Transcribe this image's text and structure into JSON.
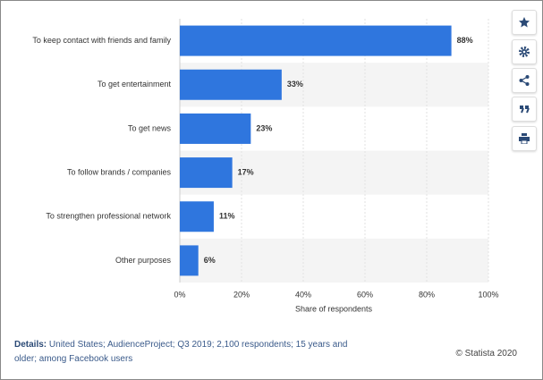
{
  "chart_data": {
    "type": "barh",
    "categories": [
      "To keep contact with friends and family",
      "To get entertainment",
      "To get news",
      "To follow brands / companies",
      "To strengthen professional network",
      "Other purposes"
    ],
    "values": [
      88,
      33,
      23,
      17,
      11,
      6
    ],
    "value_labels": [
      "88%",
      "33%",
      "23%",
      "17%",
      "11%",
      "6%"
    ],
    "color": "#2f76de",
    "xlim": [
      0,
      100
    ],
    "xticks": [
      {
        "value": 0,
        "label": "0%"
      },
      {
        "value": 20,
        "label": "20%"
      },
      {
        "value": 40,
        "label": "40%"
      },
      {
        "value": 60,
        "label": "60%"
      },
      {
        "value": 80,
        "label": "80%"
      },
      {
        "value": 100,
        "label": "100%"
      }
    ],
    "xlabel": "Share of respondents",
    "grid": true
  },
  "details_label": "Details:",
  "details": "United States; AudienceProject; Q3 2019; 2,100 respondents; 15 years and older; among Facebook users",
  "source": "© Statista 2020"
}
